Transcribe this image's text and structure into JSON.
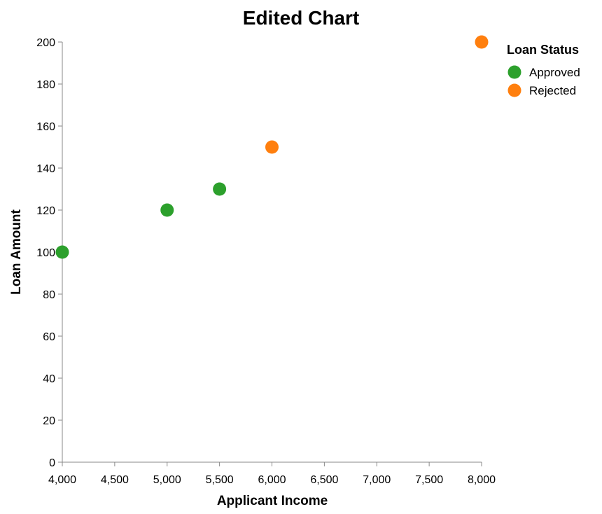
{
  "chart_data": {
    "type": "scatter",
    "title": "Edited Chart",
    "xlabel": "Applicant Income",
    "ylabel": "Loan Amount",
    "xlim": [
      4000,
      8000
    ],
    "ylim": [
      0,
      200
    ],
    "x_ticks": [
      4000,
      4500,
      5000,
      5500,
      6000,
      6500,
      7000,
      7500,
      8000
    ],
    "x_tick_labels": [
      "4,000",
      "4,500",
      "5,000",
      "5,500",
      "6,000",
      "6,500",
      "7,000",
      "7,500",
      "8,000"
    ],
    "y_ticks": [
      0,
      20,
      40,
      60,
      80,
      100,
      120,
      140,
      160,
      180,
      200
    ],
    "y_tick_labels": [
      "0",
      "20",
      "40",
      "60",
      "80",
      "100",
      "120",
      "140",
      "160",
      "180",
      "200"
    ],
    "grid": false,
    "legend": {
      "title": "Loan Status",
      "placement": "top-right",
      "entries": [
        {
          "label": "Approved",
          "color": "#2ca02c"
        },
        {
          "label": "Rejected",
          "color": "#ff7f0e"
        }
      ]
    },
    "series": [
      {
        "name": "Approved",
        "color": "#2ca02c",
        "points": [
          {
            "x": 4000,
            "y": 100
          },
          {
            "x": 5000,
            "y": 120
          },
          {
            "x": 5500,
            "y": 130
          }
        ]
      },
      {
        "name": "Rejected",
        "color": "#ff7f0e",
        "points": [
          {
            "x": 6000,
            "y": 150
          },
          {
            "x": 8000,
            "y": 200
          }
        ]
      }
    ]
  }
}
